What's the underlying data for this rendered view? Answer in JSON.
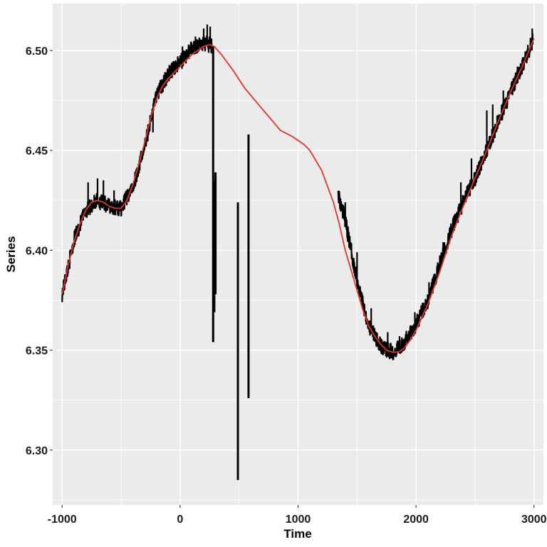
{
  "chart_data": {
    "type": "line",
    "title": "",
    "xlabel": "Time",
    "ylabel": "Series",
    "xlim": [
      -1080,
      3080
    ],
    "ylim": [
      6.2725,
      6.5235
    ],
    "x_ticks": [
      -1000,
      0,
      1000,
      2000,
      3000
    ],
    "x_tick_labels": [
      "-1000",
      "0",
      "1000",
      "2000",
      "3000"
    ],
    "y_ticks": [
      6.3,
      6.35,
      6.4,
      6.45,
      6.5
    ],
    "y_tick_labels": [
      "6.30",
      "6.35",
      "6.40",
      "6.45",
      "6.50"
    ],
    "grid": true,
    "background": "#ebebeb",
    "gridline_color": "#ffffff",
    "legend": "none",
    "series": [
      {
        "style": "observed",
        "color": "#000000",
        "segments": [
          {
            "x": [
              -1000,
              -900,
              -800,
              -700,
              -600,
              -500,
              -400,
              -300,
              -200,
              -100,
              0,
              100,
              200,
              270
            ],
            "y": [
              6.378,
              6.405,
              6.42,
              6.425,
              6.422,
              6.421,
              6.432,
              6.452,
              6.478,
              6.488,
              6.494,
              6.501,
              6.504,
              6.502
            ],
            "noise_amplitude": 0.004,
            "spikes": [
              {
                "x": -870,
                "y": 6.412
              },
              {
                "x": -780,
                "y": 6.434
              },
              {
                "x": -700,
                "y": 6.436
              },
              {
                "x": -650,
                "y": 6.435
              },
              {
                "x": -560,
                "y": 6.43
              },
              {
                "x": -230,
                "y": 6.459
              },
              {
                "x": -120,
                "y": 6.489
              },
              {
                "x": 20,
                "y": 6.502
              },
              {
                "x": 130,
                "y": 6.507
              },
              {
                "x": 200,
                "y": 6.511
              },
              {
                "x": 230,
                "y": 6.513
              },
              {
                "x": 255,
                "y": 6.512
              }
            ]
          },
          {
            "x": [
              1340,
              1400,
              1500,
              1600,
              1700,
              1800,
              1900,
              2000,
              2100,
              2200,
              2300,
              2400,
              2500,
              2600,
              2700,
              2800,
              2900,
              2990
            ],
            "y": [
              6.428,
              6.415,
              6.385,
              6.362,
              6.352,
              6.349,
              6.354,
              6.363,
              6.375,
              6.393,
              6.41,
              6.424,
              6.436,
              6.45,
              6.465,
              6.479,
              6.492,
              6.505
            ],
            "noise_amplitude": 0.004,
            "spikes": [
              {
                "x": 1400,
                "y": 6.424
              },
              {
                "x": 1500,
                "y": 6.399
              },
              {
                "x": 1620,
                "y": 6.371
              },
              {
                "x": 1760,
                "y": 6.359
              },
              {
                "x": 1860,
                "y": 6.357
              },
              {
                "x": 1990,
                "y": 6.369
              },
              {
                "x": 2110,
                "y": 6.384
              },
              {
                "x": 2230,
                "y": 6.404
              },
              {
                "x": 2380,
                "y": 6.434
              },
              {
                "x": 2470,
                "y": 6.446
              },
              {
                "x": 2600,
                "y": 6.47
              },
              {
                "x": 2650,
                "y": 6.473
              },
              {
                "x": 2740,
                "y": 6.48
              },
              {
                "x": 2860,
                "y": 6.492
              },
              {
                "x": 2985,
                "y": 6.511
              }
            ]
          }
        ],
        "vertical_drops": [
          {
            "x": 280,
            "y_low": 6.354,
            "y_high": 6.502
          },
          {
            "x": 290,
            "y_low": 6.369,
            "y_high": 6.435
          },
          {
            "x": 300,
            "y_low": 6.378,
            "y_high": 6.439
          },
          {
            "x": 490,
            "y_low": 6.285,
            "y_high": 6.424
          },
          {
            "x": 580,
            "y_low": 6.326,
            "y_high": 6.458
          }
        ]
      },
      {
        "style": "smooth",
        "color": "#e8312c",
        "x": [
          -1000,
          -950,
          -900,
          -850,
          -800,
          -750,
          -700,
          -650,
          -600,
          -550,
          -500,
          -450,
          -400,
          -350,
          -300,
          -250,
          -200,
          -150,
          -100,
          -50,
          0,
          50,
          100,
          150,
          200,
          250,
          290,
          350,
          450,
          550,
          650,
          750,
          850,
          950,
          1050,
          1100,
          1150,
          1200,
          1250,
          1300,
          1350,
          1400,
          1450,
          1500,
          1550,
          1600,
          1650,
          1700,
          1750,
          1800,
          1850,
          1900,
          1950,
          2000,
          2100,
          2200,
          2300,
          2400,
          2500,
          2600,
          2700,
          2800,
          2900,
          3000
        ],
        "y": [
          6.378,
          6.392,
          6.404,
          6.413,
          6.42,
          6.424,
          6.425,
          6.424,
          6.422,
          6.421,
          6.421,
          6.425,
          6.433,
          6.443,
          6.454,
          6.466,
          6.476,
          6.482,
          6.486,
          6.489,
          6.492,
          6.495,
          6.498,
          6.5,
          6.502,
          6.503,
          6.502,
          6.498,
          6.49,
          6.481,
          6.474,
          6.467,
          6.46,
          6.457,
          6.453,
          6.45,
          6.445,
          6.44,
          6.432,
          6.424,
          6.413,
          6.4,
          6.39,
          6.38,
          6.37,
          6.362,
          6.357,
          6.353,
          6.35,
          6.349,
          6.349,
          6.351,
          6.355,
          6.36,
          6.373,
          6.389,
          6.407,
          6.422,
          6.436,
          6.45,
          6.465,
          6.479,
          6.492,
          6.506
        ]
      }
    ]
  }
}
